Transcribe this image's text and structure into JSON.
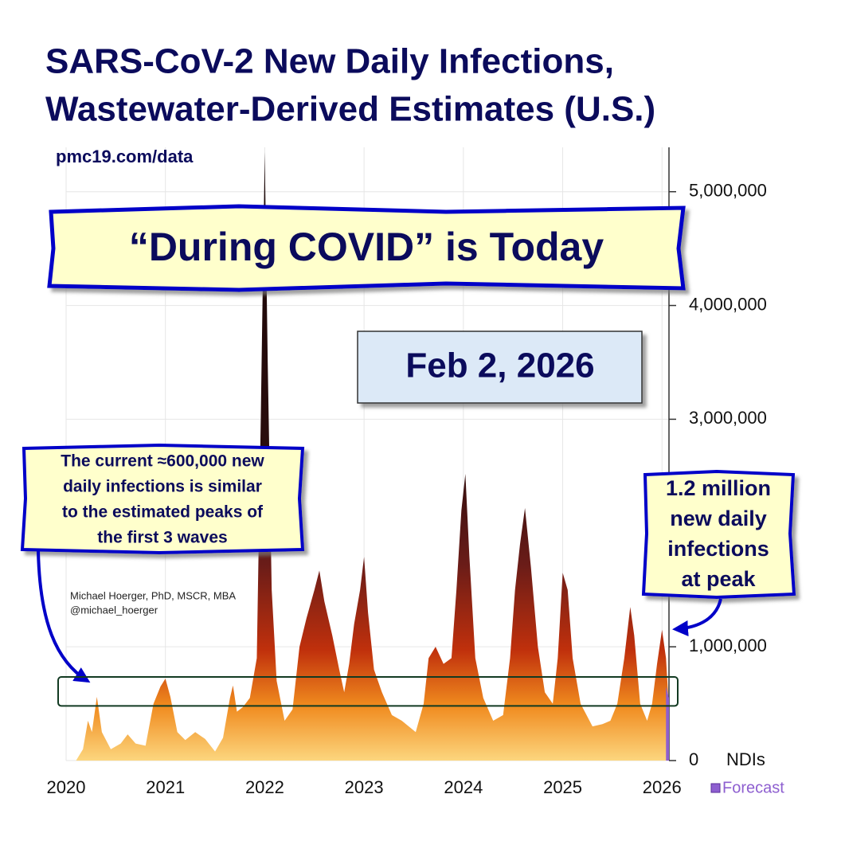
{
  "chart_data": {
    "type": "area",
    "title": [
      "SARS-CoV-2 New Daily Infections,",
      "Wastewater-Derived Estimates (U.S.)"
    ],
    "source": "pmc19.com/data",
    "banner": "“During COVID” is Today",
    "date": "Feb 2, 2026",
    "left_callout": [
      "The current ≈600,000 new",
      "daily infections is similar",
      "to the estimated peaks of",
      "the first 3 waves"
    ],
    "right_callout": [
      "1.2 million",
      "new daily",
      "infections",
      "at peak"
    ],
    "author": [
      "Michael Hoerger, PhD, MSCR, MBA",
      "@michael_hoerger"
    ],
    "y_label": "NDIs",
    "xlim": [
      2020,
      2026.07
    ],
    "xticks": [
      2020,
      2021,
      2022,
      2023,
      2024,
      2025,
      2026
    ],
    "ylim": [
      0,
      5390000
    ],
    "yticks": [
      0,
      {
        "value": 1000000,
        "label": "1,000,000"
      },
      {
        "value": 3000000,
        "label": "3,000,000"
      },
      {
        "value": 4000000,
        "label": "4,000,000"
      },
      {
        "value": 5000000,
        "label": "5,000,000"
      }
    ],
    "grid": true,
    "highlight": [
      480000,
      735000
    ],
    "fill_gradient": [
      "#fcd67e",
      "#f08a1e",
      "#c0300c",
      "#6a1c18",
      "#2a0c0c",
      "#1a0808"
    ],
    "series": [
      {
        "x": [
          2020.1,
          2020.17,
          2020.22,
          2020.26,
          2020.31,
          2020.36,
          2020.45,
          2020.55,
          2020.62,
          2020.7,
          2020.8,
          2020.88,
          2020.95,
          2021.0,
          2021.05,
          2021.12,
          2021.2,
          2021.3,
          2021.4,
          2021.5,
          2021.58,
          2021.65,
          2021.68,
          2021.72,
          2021.78,
          2021.85,
          2021.92,
          2021.96,
          2022.0,
          2022.03,
          2022.07,
          2022.12,
          2022.2,
          2022.28,
          2022.35,
          2022.42,
          2022.5,
          2022.55,
          2022.6,
          2022.68,
          2022.75,
          2022.8,
          2022.85,
          2022.9,
          2022.96,
          2023.0,
          2023.04,
          2023.1,
          2023.18,
          2023.28,
          2023.38,
          2023.45,
          2023.52,
          2023.6,
          2023.65,
          2023.72,
          2023.8,
          2023.88,
          2023.93,
          2023.98,
          2024.02,
          2024.06,
          2024.12,
          2024.2,
          2024.3,
          2024.4,
          2024.47,
          2024.52,
          2024.57,
          2024.62,
          2024.68,
          2024.75,
          2024.82,
          2024.9,
          2024.95,
          2025.0,
          2025.05,
          2025.1,
          2025.18,
          2025.3,
          2025.4,
          2025.48,
          2025.55,
          2025.62,
          2025.68,
          2025.72,
          2025.78,
          2025.85,
          2025.9,
          2025.95,
          2026.0,
          2026.04,
          2026.06
        ],
        "values": [
          0,
          100000,
          350000,
          250000,
          560000,
          250000,
          100000,
          150000,
          230000,
          150000,
          130000,
          500000,
          650000,
          720000,
          560000,
          250000,
          180000,
          250000,
          190000,
          80000,
          200000,
          550000,
          660000,
          430000,
          470000,
          550000,
          900000,
          3000000,
          5350000,
          3500000,
          1500000,
          700000,
          350000,
          450000,
          1000000,
          1250000,
          1500000,
          1670000,
          1400000,
          1100000,
          800000,
          600000,
          850000,
          1200000,
          1500000,
          1790000,
          1300000,
          800000,
          600000,
          400000,
          350000,
          300000,
          250000,
          500000,
          900000,
          1000000,
          850000,
          900000,
          1500000,
          2200000,
          2520000,
          1800000,
          900000,
          550000,
          350000,
          400000,
          900000,
          1500000,
          1900000,
          2220000,
          1700000,
          1000000,
          600000,
          500000,
          900000,
          1650000,
          1500000,
          900000,
          500000,
          300000,
          320000,
          350000,
          500000,
          900000,
          1350000,
          1100000,
          500000,
          350000,
          500000,
          850000,
          1150000,
          900000,
          600000
        ]
      },
      {
        "name": "Forecast",
        "color": "#8e5fd0",
        "x": [
          2026.04,
          2026.055,
          2026.07
        ],
        "values": [
          650000,
          600000,
          550000
        ]
      }
    ]
  }
}
